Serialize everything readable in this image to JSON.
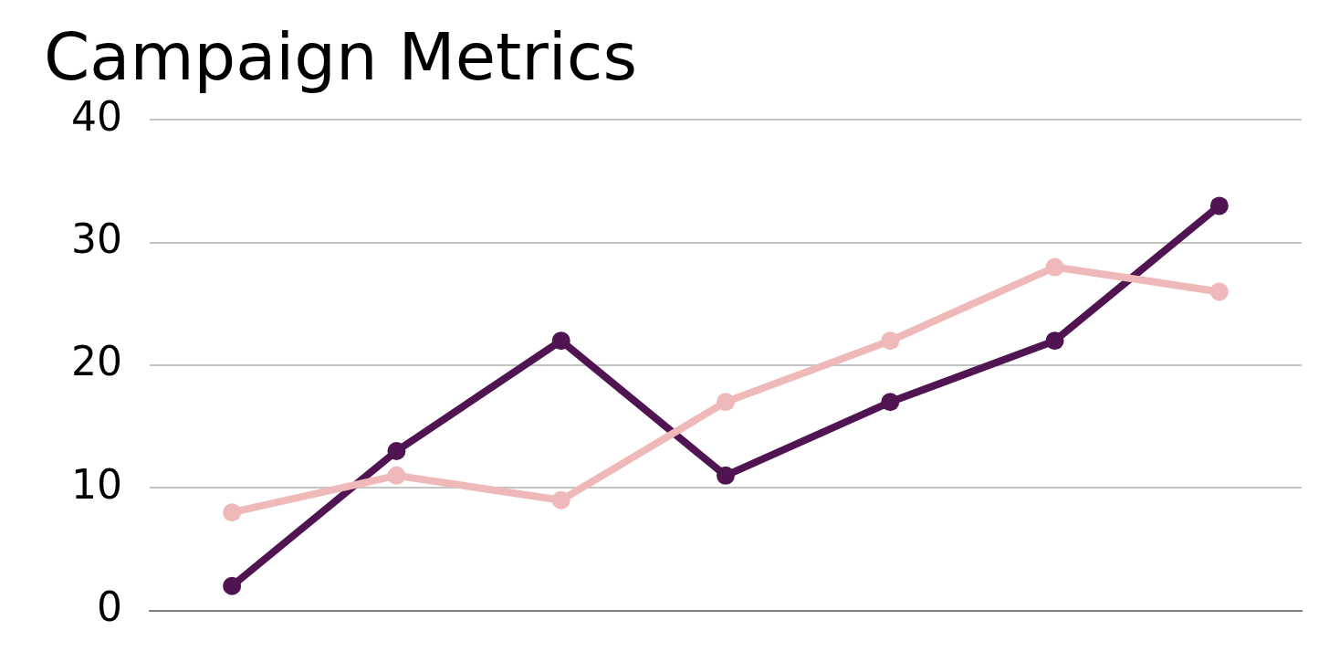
{
  "chart_data": {
    "type": "line",
    "title": "Campaign Metrics",
    "categories": [
      null,
      null,
      null,
      null,
      null,
      null,
      null
    ],
    "series": [
      {
        "color": "#f0b9b9",
        "values": [
          8,
          11,
          9,
          17,
          22,
          28,
          26
        ]
      },
      {
        "color": "#511453",
        "values": [
          2,
          13,
          22,
          11,
          17,
          22,
          33
        ]
      }
    ],
    "ylim": [
      0,
      40
    ],
    "yticks": [
      0,
      10,
      20,
      30,
      40
    ],
    "grid": "y",
    "legend": false,
    "marker": "circle"
  }
}
